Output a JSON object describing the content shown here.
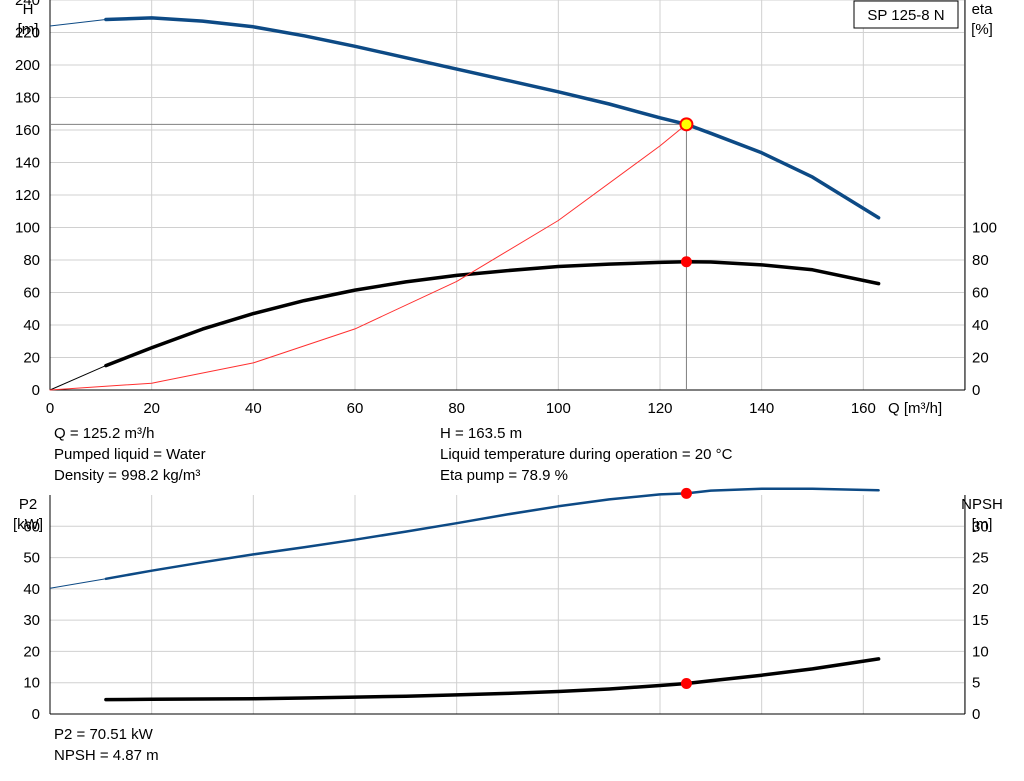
{
  "chart_data": [
    {
      "type": "line",
      "title": "SP 125-8 N",
      "xlabel": "Q [m³/h]",
      "xlim": [
        0,
        180
      ],
      "xticks": [
        0,
        20,
        40,
        60,
        80,
        100,
        120,
        140,
        160
      ],
      "left_axis": {
        "label_line1": "H",
        "label_line2": "[m]",
        "lim": [
          0,
          240
        ],
        "ticks": [
          0,
          20,
          40,
          60,
          80,
          100,
          120,
          140,
          160,
          180,
          200,
          220,
          240
        ]
      },
      "right_axis": {
        "label_line1": "eta",
        "label_line2": "[%]",
        "lim": [
          0,
          240
        ],
        "ticks": [
          0,
          20,
          40,
          60,
          80,
          100
        ]
      },
      "grid": true,
      "series": [
        {
          "id": "head",
          "axis": "left",
          "color": "#0d4a85",
          "extrapolated": {
            "x": [
              0,
              11
            ],
            "y": [
              224,
              228
            ]
          },
          "x": [
            11,
            20,
            30,
            40,
            50,
            60,
            70,
            80,
            90,
            100,
            110,
            120,
            125.2,
            130,
            140,
            150,
            163
          ],
          "y": [
            228,
            229,
            227,
            223.5,
            218,
            211.5,
            204.5,
            197.5,
            190.5,
            183.5,
            176,
            167.5,
            163.5,
            158,
            146,
            131,
            106
          ]
        },
        {
          "id": "efficiency",
          "axis": "right",
          "color": "#000000",
          "extrapolated": {
            "x": [
              0,
              11
            ],
            "y": [
              0,
              15
            ]
          },
          "x": [
            11,
            20,
            30,
            40,
            50,
            60,
            70,
            80,
            90,
            100,
            110,
            120,
            125.2,
            130,
            140,
            150,
            163
          ],
          "y": [
            15,
            26,
            37.5,
            47,
            55,
            61.5,
            66.5,
            70.5,
            73.5,
            76,
            77.5,
            78.5,
            78.9,
            78.8,
            77,
            74,
            65.5
          ]
        },
        {
          "id": "system-curve",
          "axis": "left",
          "color": "#ff3030",
          "x": [
            0,
            20,
            40,
            60,
            80,
            100,
            120,
            125.2
          ],
          "y": [
            0,
            4.2,
            16.7,
            37.6,
            66.8,
            104.3,
            150.2,
            163.5
          ]
        }
      ],
      "operating_point": {
        "q": 125.2,
        "h": 163.5,
        "eta": 78.9
      }
    },
    {
      "type": "line",
      "xlim": [
        0,
        180
      ],
      "xticks": [
        0,
        20,
        40,
        60,
        80,
        100,
        120,
        140,
        160
      ],
      "left_axis": {
        "label_line1": "P2",
        "label_line2": "[kW]",
        "lim": [
          0,
          70
        ],
        "ticks": [
          0,
          10,
          20,
          30,
          40,
          50,
          60
        ]
      },
      "right_axis": {
        "label_line1": "NPSH",
        "label_line2": "[m]",
        "lim": [
          0,
          35
        ],
        "ticks": [
          0,
          5,
          10,
          15,
          20,
          25,
          30
        ]
      },
      "grid": true,
      "series": [
        {
          "id": "power",
          "axis": "left",
          "color": "#0d4a85",
          "extrapolated": {
            "x": [
              0,
              11
            ],
            "y": [
              40.2,
              43.2
            ]
          },
          "x": [
            11,
            20,
            30,
            40,
            50,
            60,
            70,
            80,
            90,
            100,
            110,
            120,
            125.2,
            130,
            140,
            150,
            163
          ],
          "y": [
            43.2,
            45.8,
            48.5,
            51,
            53.3,
            55.7,
            58.3,
            61,
            63.8,
            66.4,
            68.6,
            70.2,
            70.51,
            71.4,
            72,
            72,
            71.5
          ]
        },
        {
          "id": "npsh",
          "axis": "right",
          "color": "#000000",
          "x": [
            11,
            20,
            30,
            40,
            50,
            60,
            70,
            80,
            90,
            100,
            110,
            120,
            125.2,
            130,
            140,
            150,
            163
          ],
          "y": [
            2.3,
            2.35,
            2.4,
            2.45,
            2.55,
            2.7,
            2.85,
            3.05,
            3.3,
            3.6,
            4,
            4.55,
            4.87,
            5.3,
            6.2,
            7.2,
            8.8
          ]
        }
      ],
      "operating_point": {
        "q": 125.2,
        "p2": 70.51,
        "npsh": 4.87
      }
    }
  ],
  "info_top": {
    "q": "Q = 125.2 m³/h",
    "liquid": "Pumped liquid = Water",
    "density": "Density = 998.2 kg/m³",
    "h": "H = 163.5 m",
    "temperature": "Liquid temperature during operation = 20 °C",
    "eta": "Eta pump = 78.9 %"
  },
  "info_bottom": {
    "p2": "P2 = 70.51 kW",
    "npsh": "NPSH = 4.87 m"
  },
  "colors": {
    "grid": "#d0d0d0",
    "curve_blue": "#0d4a85",
    "point_red": "#ff0000",
    "point_yellow": "#ffff00",
    "system_curve": "#ff3030"
  }
}
